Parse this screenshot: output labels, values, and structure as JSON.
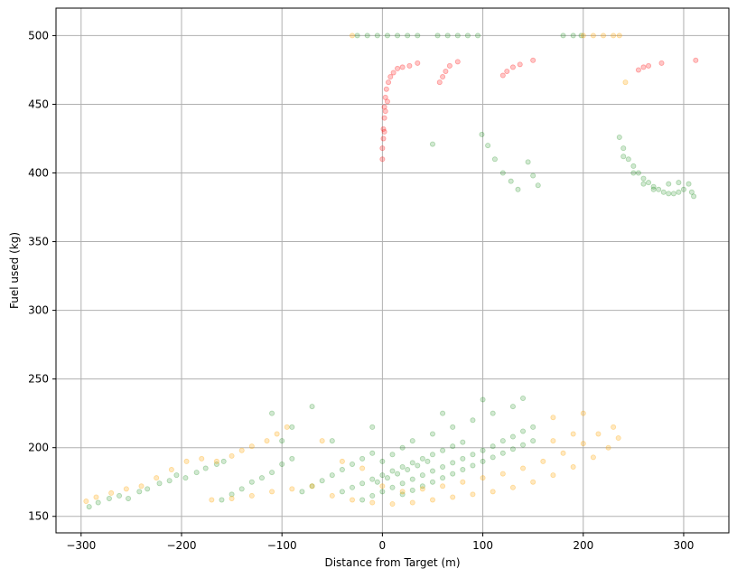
{
  "chart_data": {
    "type": "scatter",
    "title": "",
    "xlabel": "Distance from Target (m)",
    "ylabel": "Fuel used (kg)",
    "xlim": [
      -325,
      345
    ],
    "ylim": [
      138,
      520
    ],
    "xticks": [
      -300,
      -200,
      -100,
      0,
      100,
      200,
      300
    ],
    "yticks": [
      150,
      200,
      250,
      300,
      350,
      400,
      450,
      500
    ],
    "xtick_labels": [
      "−300",
      "−200",
      "−100",
      "0",
      "100",
      "200",
      "300"
    ],
    "ytick_labels": [
      "150",
      "200",
      "250",
      "300",
      "350",
      "400",
      "450",
      "500"
    ],
    "grid": true,
    "legend": "none",
    "colors": {
      "green": "#008000",
      "orange": "#ffa500",
      "red": "#ff0000",
      "grid": "#b0b0b0"
    },
    "series": [
      {
        "color": "green",
        "points": [
          [
            -292,
            157
          ],
          [
            -283,
            160
          ],
          [
            -272,
            163
          ],
          [
            -262,
            165
          ],
          [
            -253,
            163
          ],
          [
            -242,
            168
          ],
          [
            -234,
            170
          ],
          [
            -222,
            174
          ],
          [
            -212,
            176
          ],
          [
            -205,
            180
          ],
          [
            -196,
            178
          ],
          [
            -185,
            182
          ],
          [
            -176,
            185
          ],
          [
            -165,
            188
          ],
          [
            -158,
            190
          ],
          [
            -160,
            162
          ],
          [
            -150,
            166
          ],
          [
            -140,
            170
          ],
          [
            -130,
            175
          ],
          [
            -120,
            178
          ],
          [
            -110,
            182
          ],
          [
            -100,
            188
          ],
          [
            -90,
            192
          ],
          [
            -80,
            168
          ],
          [
            -70,
            172
          ],
          [
            -60,
            176
          ],
          [
            -50,
            180
          ],
          [
            -40,
            184
          ],
          [
            -30,
            188
          ],
          [
            -20,
            192
          ],
          [
            -10,
            196
          ],
          [
            -5,
            175
          ],
          [
            5,
            178
          ],
          [
            15,
            181
          ],
          [
            25,
            184
          ],
          [
            35,
            187
          ],
          [
            45,
            190
          ],
          [
            -40,
            168
          ],
          [
            -30,
            171
          ],
          [
            -20,
            174
          ],
          [
            -10,
            177
          ],
          [
            0,
            180
          ],
          [
            10,
            183
          ],
          [
            20,
            186
          ],
          [
            30,
            189
          ],
          [
            40,
            192
          ],
          [
            50,
            195
          ],
          [
            60,
            198
          ],
          [
            70,
            201
          ],
          [
            80,
            204
          ],
          [
            -20,
            162
          ],
          [
            -10,
            165
          ],
          [
            0,
            168
          ],
          [
            10,
            171
          ],
          [
            20,
            174
          ],
          [
            30,
            177
          ],
          [
            40,
            180
          ],
          [
            50,
            183
          ],
          [
            60,
            186
          ],
          [
            70,
            189
          ],
          [
            80,
            192
          ],
          [
            90,
            195
          ],
          [
            100,
            198
          ],
          [
            110,
            201
          ],
          [
            120,
            205
          ],
          [
            130,
            208
          ],
          [
            140,
            212
          ],
          [
            150,
            215
          ],
          [
            20,
            166
          ],
          [
            30,
            169
          ],
          [
            40,
            172
          ],
          [
            50,
            175
          ],
          [
            60,
            178
          ],
          [
            70,
            181
          ],
          [
            80,
            184
          ],
          [
            90,
            187
          ],
          [
            100,
            190
          ],
          [
            110,
            193
          ],
          [
            120,
            196
          ],
          [
            130,
            199
          ],
          [
            140,
            202
          ],
          [
            150,
            205
          ],
          [
            0,
            190
          ],
          [
            10,
            195
          ],
          [
            20,
            200
          ],
          [
            30,
            205
          ],
          [
            50,
            210
          ],
          [
            70,
            215
          ],
          [
            90,
            220
          ],
          [
            110,
            225
          ],
          [
            130,
            230
          ],
          [
            -110,
            225
          ],
          [
            -100,
            205
          ],
          [
            -90,
            215
          ],
          [
            -70,
            230
          ],
          [
            -50,
            205
          ],
          [
            -10,
            215
          ],
          [
            60,
            225
          ],
          [
            100,
            235
          ],
          [
            140,
            236
          ],
          [
            -25,
            500
          ],
          [
            -15,
            500
          ],
          [
            -5,
            500
          ],
          [
            5,
            500
          ],
          [
            15,
            500
          ],
          [
            25,
            500
          ],
          [
            35,
            500
          ],
          [
            55,
            500
          ],
          [
            65,
            500
          ],
          [
            75,
            500
          ],
          [
            85,
            500
          ],
          [
            95,
            500
          ],
          [
            180,
            500
          ],
          [
            190,
            500
          ],
          [
            198,
            500
          ],
          [
            99,
            428
          ],
          [
            105,
            420
          ],
          [
            112,
            410
          ],
          [
            120,
            400
          ],
          [
            128,
            394
          ],
          [
            135,
            388
          ],
          [
            145,
            408
          ],
          [
            150,
            398
          ],
          [
            155,
            391
          ],
          [
            50,
            421
          ],
          [
            236,
            426
          ],
          [
            240,
            418
          ],
          [
            245,
            410
          ],
          [
            250,
            405
          ],
          [
            255,
            400
          ],
          [
            260,
            396
          ],
          [
            265,
            393
          ],
          [
            270,
            390
          ],
          [
            275,
            388
          ],
          [
            280,
            386
          ],
          [
            285,
            385
          ],
          [
            290,
            385
          ],
          [
            295,
            386
          ],
          [
            300,
            388
          ],
          [
            305,
            392
          ],
          [
            308,
            386
          ],
          [
            310,
            383
          ],
          [
            240,
            412
          ],
          [
            250,
            400
          ],
          [
            260,
            392
          ],
          [
            270,
            388
          ],
          [
            285,
            392
          ],
          [
            295,
            393
          ]
        ]
      },
      {
        "color": "orange",
        "points": [
          [
            -295,
            161
          ],
          [
            -285,
            164
          ],
          [
            -270,
            167
          ],
          [
            -255,
            170
          ],
          [
            -240,
            172
          ],
          [
            -225,
            178
          ],
          [
            -210,
            184
          ],
          [
            -195,
            190
          ],
          [
            -180,
            192
          ],
          [
            -165,
            190
          ],
          [
            -150,
            194
          ],
          [
            -140,
            198
          ],
          [
            -130,
            201
          ],
          [
            -115,
            205
          ],
          [
            -105,
            210
          ],
          [
            -95,
            215
          ],
          [
            -170,
            162
          ],
          [
            -150,
            163
          ],
          [
            -130,
            165
          ],
          [
            -110,
            168
          ],
          [
            -90,
            170
          ],
          [
            -70,
            172
          ],
          [
            -50,
            165
          ],
          [
            -30,
            162
          ],
          [
            -10,
            160
          ],
          [
            10,
            159
          ],
          [
            30,
            160
          ],
          [
            50,
            162
          ],
          [
            70,
            164
          ],
          [
            90,
            166
          ],
          [
            110,
            168
          ],
          [
            130,
            171
          ],
          [
            150,
            175
          ],
          [
            170,
            180
          ],
          [
            190,
            186
          ],
          [
            210,
            193
          ],
          [
            225,
            200
          ],
          [
            235,
            207
          ],
          [
            0,
            172
          ],
          [
            20,
            168
          ],
          [
            40,
            170
          ],
          [
            60,
            172
          ],
          [
            80,
            175
          ],
          [
            100,
            178
          ],
          [
            120,
            181
          ],
          [
            140,
            185
          ],
          [
            160,
            190
          ],
          [
            180,
            196
          ],
          [
            200,
            203
          ],
          [
            215,
            210
          ],
          [
            230,
            215
          ],
          [
            -60,
            205
          ],
          [
            -40,
            190
          ],
          [
            -20,
            185
          ],
          [
            170,
            205
          ],
          [
            190,
            210
          ],
          [
            200,
            225
          ],
          [
            170,
            222
          ],
          [
            -30,
            500
          ],
          [
            200,
            500
          ],
          [
            210,
            500
          ],
          [
            220,
            500
          ],
          [
            230,
            500
          ],
          [
            236,
            500
          ],
          [
            242,
            466
          ]
        ]
      },
      {
        "color": "red",
        "points": [
          [
            0,
            410
          ],
          [
            0,
            418
          ],
          [
            1,
            425
          ],
          [
            1,
            432
          ],
          [
            2,
            440
          ],
          [
            2,
            448
          ],
          [
            3,
            455
          ],
          [
            4,
            461
          ],
          [
            6,
            466
          ],
          [
            8,
            470
          ],
          [
            11,
            473
          ],
          [
            15,
            476
          ],
          [
            20,
            477
          ],
          [
            27,
            478
          ],
          [
            35,
            480
          ],
          [
            3,
            445
          ],
          [
            5,
            452
          ],
          [
            2,
            430
          ],
          [
            57,
            466
          ],
          [
            60,
            470
          ],
          [
            63,
            474
          ],
          [
            67,
            478
          ],
          [
            75,
            481
          ],
          [
            120,
            471
          ],
          [
            124,
            474
          ],
          [
            130,
            477
          ],
          [
            137,
            479
          ],
          [
            150,
            482
          ],
          [
            255,
            475
          ],
          [
            260,
            477
          ],
          [
            265,
            478
          ],
          [
            278,
            480
          ],
          [
            312,
            482
          ]
        ]
      }
    ]
  }
}
